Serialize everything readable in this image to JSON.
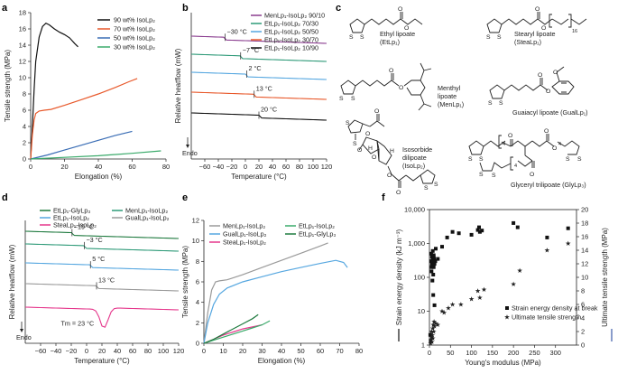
{
  "panel_labels": {
    "a": "a",
    "b": "b",
    "c": "c",
    "d": "d",
    "e": "e",
    "f": "f"
  },
  "colors": {
    "black": "#111111",
    "orange": "#e8592b",
    "blue": "#3a6db5",
    "green": "#3aaa6a",
    "purple": "#8a3d8f",
    "teal": "#2e9a78",
    "skyblue": "#56a7e0",
    "gray": "#9a9a9a",
    "pink": "#e5388c",
    "darkgreen": "#1f7a3f",
    "star": "#3a5aa8"
  },
  "chart_data": [
    {
      "id": "a",
      "type": "line",
      "xlabel": "Elongation (%)",
      "ylabel": "Tensile strength (MPa)",
      "xlim": [
        0,
        80
      ],
      "ylim": [
        0,
        18
      ],
      "xticks": [
        0,
        20,
        40,
        60,
        80
      ],
      "yticks": [
        0,
        2,
        4,
        6,
        8,
        10,
        12,
        14,
        16,
        18
      ],
      "legend_position": "top-right",
      "series": [
        {
          "name": "90 wt% IsoLp₂",
          "color": "#111111",
          "x": [
            0,
            1,
            2,
            3,
            5,
            7,
            9,
            11,
            14,
            17,
            20,
            23,
            26,
            28
          ],
          "y": [
            0,
            4,
            8.5,
            12,
            15,
            16.3,
            16.7,
            16.5,
            16,
            15.6,
            15.3,
            14.9,
            14.2,
            13.8
          ]
        },
        {
          "name": "70 wt% IsoLp₂",
          "color": "#e8592b",
          "x": [
            0,
            1,
            2,
            3,
            5,
            8,
            12,
            20,
            30,
            40,
            50,
            58,
            63
          ],
          "y": [
            0,
            3,
            4.8,
            5.6,
            5.9,
            6.0,
            6.1,
            6.6,
            7.3,
            8.0,
            8.8,
            9.5,
            9.9
          ]
        },
        {
          "name": "50 wt% IsoLp₂",
          "color": "#3a6db5",
          "x": [
            0,
            10,
            20,
            30,
            40,
            50,
            60
          ],
          "y": [
            0,
            0.5,
            1.1,
            1.7,
            2.3,
            2.9,
            3.4
          ]
        },
        {
          "name": "30 wt% IsoLp₂",
          "color": "#3aaa6a",
          "x": [
            0,
            20,
            40,
            60,
            77
          ],
          "y": [
            0,
            0.2,
            0.4,
            0.7,
            1.0
          ]
        }
      ]
    },
    {
      "id": "b",
      "type": "line",
      "xlabel": "Temperature (°C)",
      "ylabel": "Relative heatflow (mW)",
      "y_direction_label": "Endo",
      "xlim": [
        -80,
        120
      ],
      "xticks": [
        -60,
        -40,
        -20,
        0,
        20,
        40,
        60,
        80,
        100,
        120
      ],
      "legend_position": "top-right",
      "series": [
        {
          "name": "MenLp₁-IsoLp₂ 90/10",
          "color": "#8a3d8f",
          "glass_transition_label": "−30 °C",
          "tg": -30
        },
        {
          "name": "EtLp₁-IsoLp₂ 70/30",
          "color": "#2e9a78",
          "glass_transition_label": "−7 °C",
          "tg": -7
        },
        {
          "name": "EtLp₁-IsoLp₂ 50/50",
          "color": "#56a7e0",
          "glass_transition_label": "2 °C",
          "tg": 2
        },
        {
          "name": "EtLp₁-IsoLp₂ 30/70",
          "color": "#e8592b",
          "glass_transition_label": "13 °C",
          "tg": 13
        },
        {
          "name": "EtLp₁-IsoLp₂ 10/90",
          "color": "#111111",
          "glass_transition_label": "20 °C",
          "tg": 20
        }
      ]
    },
    {
      "id": "d",
      "type": "line",
      "xlabel": "Temperature (°C)",
      "ylabel": "Relative heatflow (mW)",
      "y_direction_label": "Endo",
      "xlim": [
        -80,
        120
      ],
      "xticks": [
        -60,
        -40,
        -20,
        0,
        20,
        40,
        60,
        80,
        100,
        120
      ],
      "legend_position": "top",
      "series": [
        {
          "name": "EtLp₁-GlyLp₃",
          "color": "#1f7a3f",
          "glass_transition_label": "−19 °C",
          "tg": -19
        },
        {
          "name": "MenLp₁-IsoLp₂",
          "color": "#2e9a78",
          "glass_transition_label": "−3 °C",
          "tg": -3
        },
        {
          "name": "EtLp₁-IsoLp₂",
          "color": "#56a7e0",
          "glass_transition_label": "5 °C",
          "tg": 5
        },
        {
          "name": "GualLp₁-IsoLp₂",
          "color": "#9a9a9a",
          "glass_transition_label": "13 °C",
          "tg": 13
        },
        {
          "name": "SteaLp₁-IsoLp₂",
          "color": "#e5388c",
          "melting_label": "Tm = 23 °C",
          "tm": 23
        }
      ]
    },
    {
      "id": "e",
      "type": "line",
      "xlabel": "Elongation (%)",
      "ylabel": "Tensile strength (MPa)",
      "xlim": [
        0,
        80
      ],
      "ylim": [
        0,
        12
      ],
      "xticks": [
        0,
        10,
        20,
        30,
        40,
        50,
        60,
        70,
        80
      ],
      "yticks": [
        0,
        2,
        4,
        6,
        8,
        10,
        12
      ],
      "legend_position": "top",
      "series": [
        {
          "name": "MenLp₁-IsoLp₂",
          "color": "#9a9a9a",
          "x": [
            0,
            2,
            4,
            6,
            8,
            12,
            20,
            30,
            40,
            50,
            60,
            64
          ],
          "y": [
            0,
            3,
            5.2,
            6.0,
            6.1,
            6.2,
            6.7,
            7.4,
            8.1,
            8.8,
            9.5,
            9.8
          ]
        },
        {
          "name": "GualLp₁-IsoLp₂",
          "color": "#56a7e0",
          "x": [
            0,
            2,
            5,
            8,
            12,
            20,
            30,
            40,
            50,
            60,
            68,
            72,
            74
          ],
          "y": [
            0,
            2,
            3.8,
            4.8,
            5.4,
            6.0,
            6.5,
            7.0,
            7.4,
            7.8,
            8.1,
            7.9,
            7.4
          ]
        },
        {
          "name": "SteaLp₁-IsoLp₂",
          "color": "#e5388c",
          "x": [
            0,
            5,
            10,
            15,
            20,
            25,
            30
          ],
          "y": [
            0,
            0.4,
            0.8,
            1.1,
            1.4,
            1.6,
            1.8
          ]
        },
        {
          "name": "EtLp₁-IsoLp₂",
          "color": "#3aaa6a",
          "x": [
            0,
            5,
            10,
            15,
            20,
            25,
            30,
            34
          ],
          "y": [
            0,
            0.3,
            0.6,
            0.9,
            1.2,
            1.5,
            1.8,
            2.2
          ]
        },
        {
          "name": "EtLp₁-GlyLp₃",
          "color": "#1f7a3f",
          "x": [
            0,
            5,
            10,
            15,
            20,
            25,
            28
          ],
          "y": [
            0,
            0.4,
            0.9,
            1.4,
            1.9,
            2.4,
            2.8
          ]
        }
      ]
    },
    {
      "id": "f",
      "type": "scatter",
      "xlabel": "Young's modulus (MPa)",
      "ylabel": "Strain energy density (kJ m⁻³)",
      "y2label": "Ultimate tensile strength (MPa)",
      "xlim": [
        0,
        350
      ],
      "xticks": [
        0,
        50,
        100,
        150,
        200,
        250,
        300
      ],
      "ylim": [
        1,
        10000
      ],
      "ylog": true,
      "yticks": [
        "1",
        "10",
        "100",
        "1,000",
        "10,000"
      ],
      "y2lim": [
        0,
        20
      ],
      "y2ticks": [
        0,
        2,
        4,
        6,
        8,
        10,
        12,
        14,
        16,
        18,
        20
      ],
      "legend_position": "bottom-right",
      "series": [
        {
          "name": "Strain energy density at break",
          "marker": "square",
          "color": "#111111",
          "x": [
            2,
            3,
            4,
            4,
            5,
            5,
            6,
            6,
            7,
            7,
            8,
            8,
            9,
            9,
            10,
            10,
            10,
            11,
            12,
            12,
            14,
            15,
            20,
            30,
            42,
            55,
            70,
            100,
            115,
            118,
            120,
            125,
            200,
            210,
            280,
            330
          ],
          "y": [
            2,
            1.3,
            300,
            500,
            200,
            150,
            400,
            250,
            80,
            300,
            600,
            350,
            30,
            120,
            400,
            200,
            450,
            350,
            15,
            250,
            300,
            700,
            350,
            800,
            1500,
            2200,
            2000,
            1800,
            2500,
            3000,
            2200,
            2400,
            4000,
            3000,
            1500,
            2800
          ]
        },
        {
          "name": "Ultimate tensile strength",
          "marker": "star",
          "color": "#3a5aa8",
          "x": [
            3,
            4,
            5,
            5,
            6,
            7,
            8,
            8,
            9,
            10,
            11,
            12,
            15,
            20,
            30,
            35,
            45,
            55,
            75,
            100,
            115,
            120,
            130,
            200,
            215,
            280,
            330
          ],
          "y": [
            0.3,
            0.8,
            1.2,
            2,
            0.5,
            1.5,
            2.5,
            1,
            3,
            2,
            3.5,
            2.8,
            3.2,
            3,
            5,
            4.8,
            5.5,
            6,
            6,
            6.8,
            8,
            7,
            8.2,
            9,
            11,
            14,
            15
          ]
        }
      ]
    }
  ],
  "chemicals": {
    "ethyl": "Ethyl lipoate",
    "ethyl_abbr": "(EtLp₁)",
    "stearyl": "Stearyl lipoate",
    "stearyl_abbr": "(SteaLp₁)",
    "stearyl_sub": "16",
    "menthyl_1": "Menthyl",
    "menthyl_2": "lipoate",
    "menthyl_abbr": "(MenLp₁)",
    "guaiacyl": "Guaiacyl lipoate (GualLp₁)",
    "isosorbide_1": "Isosorbide",
    "isosorbide_2": "dilipoate",
    "isosorbide_abbr": "(IsoLp₂)",
    "glyceryl": "Glyceryl trilipoate (GlyLp₃)",
    "atom_S": "S",
    "atom_O": "O",
    "atom_H": "H",
    "sub4": "4"
  }
}
